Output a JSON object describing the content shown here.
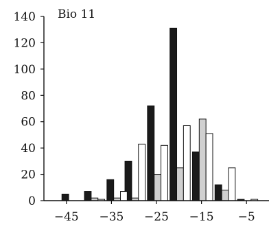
{
  "chart_data": {
    "type": "bar",
    "title": "Bio 11",
    "xlabel": "",
    "ylabel": "",
    "ylim": [
      0,
      140
    ],
    "xlim": [
      -50,
      0
    ],
    "yticks": [
      0,
      20,
      40,
      60,
      80,
      100,
      120,
      140
    ],
    "xticks": [
      -45,
      -35,
      -25,
      -15,
      -5
    ],
    "xtick_labels": [
      "−45",
      "−35",
      "−25",
      "−15",
      "−5"
    ],
    "bin_width": 1.5,
    "grid": false,
    "legend": "none",
    "series": [
      {
        "color": "#1a1a1a",
        "x": [
          -46,
          -41,
          -36,
          -32,
          -27,
          -22,
          -17,
          -12,
          -7
        ],
        "values": [
          5,
          7,
          16,
          30,
          72,
          131,
          37,
          12,
          1
        ]
      },
      {
        "color": "#d0d0d0",
        "x": [
          -44.5,
          -39.5,
          -34.5,
          -30.5,
          -25.5,
          -20.5,
          -15.5,
          -10.5,
          -5.5
        ],
        "values": [
          0,
          2,
          2,
          2,
          20,
          25,
          62,
          8,
          0
        ]
      },
      {
        "color": "#ffffff",
        "x": [
          -43,
          -38,
          -33,
          -29,
          -24,
          -19,
          -14,
          -9,
          -4
        ],
        "values": [
          0,
          1,
          7,
          43,
          42,
          57,
          51,
          25,
          1
        ]
      }
    ]
  }
}
